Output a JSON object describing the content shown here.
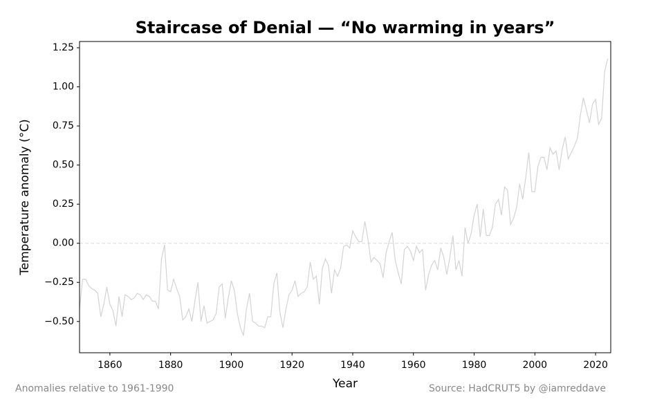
{
  "chart_data": {
    "type": "line",
    "title": "Staircase of Denial — “No warming in years”",
    "xlabel": "Year",
    "ylabel": "Temperature anomaly (°C)",
    "note_left": "Anomalies relative to 1961-1990",
    "note_right": "Source: HadCRUT5 by @iamreddave",
    "x": [
      1850,
      1851,
      1852,
      1853,
      1854,
      1855,
      1856,
      1857,
      1858,
      1859,
      1860,
      1861,
      1862,
      1863,
      1864,
      1865,
      1866,
      1867,
      1868,
      1869,
      1870,
      1871,
      1872,
      1873,
      1874,
      1875,
      1876,
      1877,
      1878,
      1879,
      1880,
      1881,
      1882,
      1883,
      1884,
      1885,
      1886,
      1887,
      1888,
      1889,
      1890,
      1891,
      1892,
      1893,
      1894,
      1895,
      1896,
      1897,
      1898,
      1899,
      1900,
      1901,
      1902,
      1903,
      1904,
      1905,
      1906,
      1907,
      1908,
      1909,
      1910,
      1911,
      1912,
      1913,
      1914,
      1915,
      1916,
      1917,
      1918,
      1919,
      1920,
      1921,
      1922,
      1923,
      1924,
      1925,
      1926,
      1927,
      1928,
      1929,
      1930,
      1931,
      1932,
      1933,
      1934,
      1935,
      1936,
      1937,
      1938,
      1939,
      1940,
      1941,
      1942,
      1943,
      1944,
      1945,
      1946,
      1947,
      1948,
      1949,
      1950,
      1951,
      1952,
      1953,
      1954,
      1955,
      1956,
      1957,
      1958,
      1959,
      1960,
      1961,
      1962,
      1963,
      1964,
      1965,
      1966,
      1967,
      1968,
      1969,
      1970,
      1971,
      1972,
      1973,
      1974,
      1975,
      1976,
      1977,
      1978,
      1979,
      1980,
      1981,
      1982,
      1983,
      1984,
      1985,
      1986,
      1987,
      1988,
      1989,
      1990,
      1991,
      1992,
      1993,
      1994,
      1995,
      1996,
      1997,
      1998,
      1999,
      2000,
      2001,
      2002,
      2003,
      2004,
      2005,
      2006,
      2007,
      2008,
      2009,
      2010,
      2011,
      2012,
      2013,
      2014,
      2015,
      2016,
      2017,
      2018,
      2019,
      2020,
      2021,
      2022,
      2023,
      2024
    ],
    "series": [
      {
        "color": "#d3d3d3",
        "values": [
          -0.42,
          -0.23,
          -0.23,
          -0.27,
          -0.29,
          -0.3,
          -0.32,
          -0.47,
          -0.39,
          -0.28,
          -0.39,
          -0.43,
          -0.53,
          -0.34,
          -0.47,
          -0.33,
          -0.34,
          -0.36,
          -0.35,
          -0.32,
          -0.33,
          -0.36,
          -0.33,
          -0.34,
          -0.37,
          -0.37,
          -0.42,
          -0.1,
          -0.01,
          -0.3,
          -0.31,
          -0.23,
          -0.29,
          -0.34,
          -0.49,
          -0.47,
          -0.42,
          -0.5,
          -0.37,
          -0.25,
          -0.5,
          -0.4,
          -0.51,
          -0.5,
          -0.49,
          -0.45,
          -0.28,
          -0.26,
          -0.48,
          -0.35,
          -0.24,
          -0.3,
          -0.45,
          -0.54,
          -0.59,
          -0.42,
          -0.32,
          -0.5,
          -0.51,
          -0.53,
          -0.53,
          -0.54,
          -0.47,
          -0.47,
          -0.26,
          -0.19,
          -0.44,
          -0.54,
          -0.42,
          -0.33,
          -0.3,
          -0.24,
          -0.34,
          -0.32,
          -0.31,
          -0.28,
          -0.12,
          -0.23,
          -0.21,
          -0.39,
          -0.16,
          -0.1,
          -0.14,
          -0.32,
          -0.17,
          -0.21,
          -0.16,
          -0.02,
          -0.01,
          -0.03,
          0.08,
          0.04,
          0.01,
          0.01,
          0.14,
          0.03,
          -0.12,
          -0.09,
          -0.11,
          -0.13,
          -0.22,
          -0.06,
          0.01,
          0.07,
          -0.11,
          -0.19,
          -0.26,
          -0.04,
          -0.02,
          -0.05,
          -0.11,
          -0.02,
          -0.06,
          -0.04,
          -0.3,
          -0.2,
          -0.14,
          -0.11,
          -0.17,
          -0.03,
          -0.09,
          -0.2,
          -0.09,
          0.05,
          -0.17,
          -0.11,
          -0.21,
          0.1,
          0.0,
          0.06,
          0.18,
          0.25,
          0.04,
          0.22,
          0.05,
          0.05,
          0.1,
          0.25,
          0.28,
          0.18,
          0.36,
          0.34,
          0.12,
          0.16,
          0.23,
          0.38,
          0.28,
          0.42,
          0.58,
          0.33,
          0.33,
          0.49,
          0.55,
          0.55,
          0.47,
          0.61,
          0.57,
          0.59,
          0.47,
          0.6,
          0.68,
          0.54,
          0.58,
          0.62,
          0.67,
          0.82,
          0.93,
          0.85,
          0.77,
          0.89,
          0.92,
          0.76,
          0.8,
          1.1,
          1.18
        ]
      }
    ],
    "reference_line": 0,
    "xlim": [
      1850,
      2025
    ],
    "xticks": [
      1860,
      1880,
      1900,
      1920,
      1940,
      1960,
      1980,
      2000,
      2020
    ],
    "ylim": [
      -0.7,
      1.29
    ],
    "yticks": [
      {
        "value": -0.5,
        "label": "−0.50"
      },
      {
        "value": -0.25,
        "label": "−0.25"
      },
      {
        "value": 0,
        "label": "0.00"
      },
      0.25,
      {
        "value": 0.5,
        "label": "0.50"
      },
      0.75,
      {
        "value": 1,
        "label": "1.00"
      },
      1.25
    ]
  }
}
